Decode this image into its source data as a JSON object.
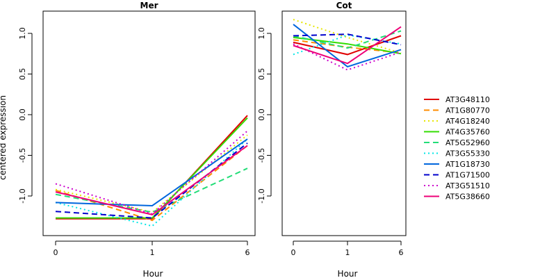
{
  "chart_data": {
    "type": "line",
    "ylabel": "centered expression",
    "xlabel": "Hour",
    "x_ticks": [
      "0",
      "1",
      "6"
    ],
    "y_ticks": [
      "-1.0",
      "-0.5",
      "0.0",
      "0.5",
      "1.0"
    ],
    "ylim": [
      -1.48,
      1.3
    ],
    "grid": false,
    "legend_position": "right",
    "panels": [
      {
        "title": "Mer",
        "series": [
          {
            "name": "AT3G48110",
            "values": [
              -1.28,
              -1.28,
              -0.01
            ]
          },
          {
            "name": "AT1G80770",
            "values": [
              -0.93,
              -1.3,
              -0.38
            ]
          },
          {
            "name": "AT4G18240",
            "values": [
              -0.92,
              -1.2,
              -0.25
            ]
          },
          {
            "name": "AT4G35760",
            "values": [
              -1.27,
              -1.27,
              -0.04
            ]
          },
          {
            "name": "AT5G52960",
            "values": [
              -0.98,
              -1.2,
              -0.66
            ]
          },
          {
            "name": "AT3G55330",
            "values": [
              -1.08,
              -1.37,
              -0.3
            ]
          },
          {
            "name": "AT1G18730",
            "values": [
              -1.08,
              -1.12,
              -0.3
            ]
          },
          {
            "name": "AT1G71500",
            "values": [
              -1.19,
              -1.27,
              -0.35
            ]
          },
          {
            "name": "AT3G51510",
            "values": [
              -0.85,
              -1.22,
              -0.2
            ]
          },
          {
            "name": "AT5G38660",
            "values": [
              -0.95,
              -1.23,
              -0.38
            ]
          }
        ]
      },
      {
        "title": "Cot",
        "series": [
          {
            "name": "AT3G48110",
            "values": [
              0.89,
              0.74,
              0.97
            ]
          },
          {
            "name": "AT1G80770",
            "values": [
              0.92,
              0.83,
              0.76
            ]
          },
          {
            "name": "AT4G18240",
            "values": [
              1.17,
              0.95,
              0.76
            ]
          },
          {
            "name": "AT4G35760",
            "values": [
              0.95,
              0.87,
              0.75
            ]
          },
          {
            "name": "AT5G52960",
            "values": [
              0.97,
              0.82,
              1.03
            ]
          },
          {
            "name": "AT3G55330",
            "values": [
              0.74,
              0.98,
              0.87
            ]
          },
          {
            "name": "AT1G18730",
            "values": [
              1.11,
              0.59,
              0.8
            ]
          },
          {
            "name": "AT1G71500",
            "values": [
              0.97,
              0.99,
              0.86
            ]
          },
          {
            "name": "AT3G51510",
            "values": [
              0.87,
              0.55,
              0.77
            ]
          },
          {
            "name": "AT5G38660",
            "values": [
              0.85,
              0.63,
              1.08
            ]
          }
        ]
      }
    ],
    "styles": [
      {
        "color": "#e00000",
        "dash": "solid"
      },
      {
        "color": "#ff8c00",
        "dash": "dashed"
      },
      {
        "color": "#e6e600",
        "dash": "dotted"
      },
      {
        "color": "#33dd00",
        "dash": "solid"
      },
      {
        "color": "#22dd77",
        "dash": "dashed"
      },
      {
        "color": "#00e6e6",
        "dash": "dotted"
      },
      {
        "color": "#0066dd",
        "dash": "solid"
      },
      {
        "color": "#0000cc",
        "dash": "dashed"
      },
      {
        "color": "#cc00cc",
        "dash": "dotted"
      },
      {
        "color": "#ee0077",
        "dash": "solid"
      }
    ]
  }
}
